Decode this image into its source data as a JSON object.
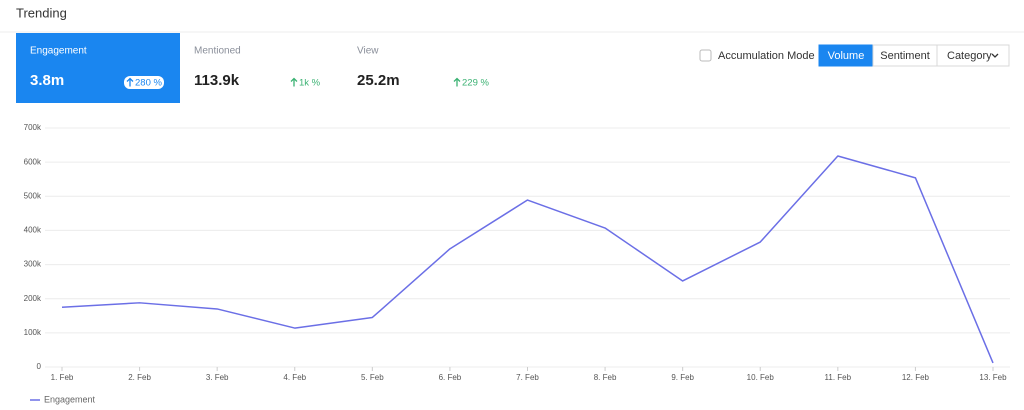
{
  "header": {
    "title": "Trending"
  },
  "metrics": [
    {
      "label": "Engagement",
      "value": "3.8m",
      "change": "280 %"
    },
    {
      "label": "Mentioned",
      "value": "113.9k",
      "change": "1k %"
    },
    {
      "label": "View",
      "value": "25.2m",
      "change": "229 %"
    }
  ],
  "controls": {
    "checkbox": "Accumulation Mode",
    "tabs": [
      "Volume",
      "Sentiment"
    ],
    "dropdown": "Category"
  },
  "chart_data": {
    "type": "line",
    "categories": [
      "1. Feb",
      "2. Feb",
      "3. Feb",
      "4. Feb",
      "5. Feb",
      "6. Feb",
      "7. Feb",
      "8. Feb",
      "9. Feb",
      "10. Feb",
      "11. Feb",
      "12. Feb",
      "13. Feb"
    ],
    "series": [
      {
        "name": "Engagement",
        "color": "#6b6fe6",
        "values": [
          175000,
          188000,
          170000,
          114000,
          145000,
          346000,
          489000,
          407000,
          252000,
          366000,
          618000,
          554000,
          12000
        ]
      }
    ],
    "ylim": [
      0,
      700000
    ],
    "yticks": [
      0,
      {
        "value": 100000,
        "label": "100k"
      },
      {
        "value": 200000,
        "label": "200k"
      },
      {
        "value": 300000,
        "label": "300k"
      },
      {
        "value": 400000,
        "label": "400k"
      },
      {
        "value": 500000,
        "label": "500k"
      },
      {
        "value": 600000,
        "label": "600k"
      },
      {
        "value": 700000,
        "label": "700k"
      }
    ],
    "grid": true,
    "legend": "bottom-left"
  }
}
